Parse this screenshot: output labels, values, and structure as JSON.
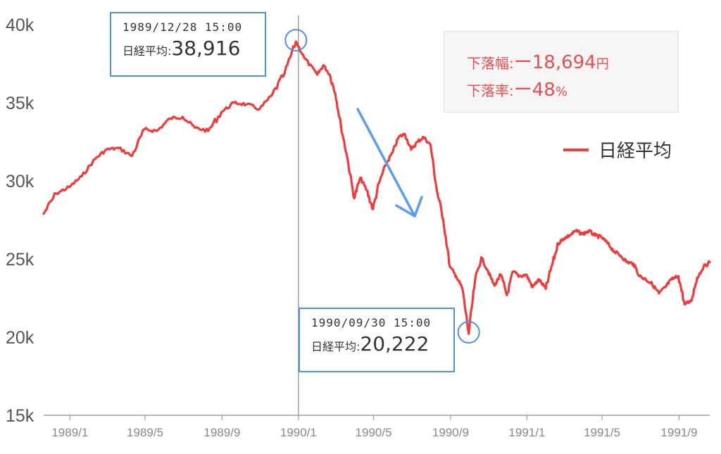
{
  "chart_data": {
    "type": "line",
    "yticks": [
      "15k",
      "20k",
      "25k",
      "30k",
      "35k",
      "40k"
    ],
    "xticks": [
      {
        "label": "1989/1",
        "x": "1989-01-01"
      },
      {
        "label": "1989/5",
        "x": "1989-05-01"
      },
      {
        "label": "1989/9",
        "x": "1989-09-01"
      },
      {
        "label": "1990/1",
        "x": "1990-01-01"
      },
      {
        "label": "1990/5",
        "x": "1990-05-01"
      },
      {
        "label": "1990/9",
        "x": "1990-09-01"
      },
      {
        "label": "1991/1",
        "x": "1991-01-01"
      },
      {
        "label": "1991/5",
        "x": "1991-05-01"
      },
      {
        "label": "1991/9",
        "x": "1991-09-01"
      }
    ],
    "ylim": [
      15000,
      40000
    ],
    "xlim": [
      "1988-11-20",
      "1991-10-20"
    ],
    "grid": false,
    "legend": {
      "position": "right",
      "label": "日経平均"
    },
    "series": [
      {
        "name": "日経平均",
        "color": "#ef3b3b",
        "x": [
          "1988-11-20",
          "1988-12-10",
          "1988-12-31",
          "1989-01-20",
          "1989-02-10",
          "1989-02-28",
          "1989-03-20",
          "1989-04-10",
          "1989-04-30",
          "1989-05-20",
          "1989-06-10",
          "1989-06-30",
          "1989-07-20",
          "1989-08-10",
          "1989-08-31",
          "1989-09-20",
          "1989-10-10",
          "1989-10-31",
          "1989-11-20",
          "1989-12-10",
          "1989-12-28",
          "1990-01-10",
          "1990-01-31",
          "1990-02-10",
          "1990-02-20",
          "1990-03-01",
          "1990-03-10",
          "1990-03-20",
          "1990-03-31",
          "1990-04-10",
          "1990-04-20",
          "1990-04-30",
          "1990-05-10",
          "1990-05-20",
          "1990-05-31",
          "1990-06-10",
          "1990-06-20",
          "1990-06-30",
          "1990-07-10",
          "1990-07-20",
          "1990-07-31",
          "1990-08-10",
          "1990-08-20",
          "1990-08-31",
          "1990-09-10",
          "1990-09-20",
          "1990-09-30",
          "1990-10-10",
          "1990-10-20",
          "1990-10-31",
          "1990-11-10",
          "1990-11-20",
          "1990-11-30",
          "1990-12-10",
          "1990-12-20",
          "1990-12-31",
          "1991-01-10",
          "1991-01-20",
          "1991-01-31",
          "1991-02-10",
          "1991-02-20",
          "1991-02-28",
          "1991-03-10",
          "1991-03-20",
          "1991-03-31",
          "1991-04-10",
          "1991-04-20",
          "1991-04-30",
          "1991-05-10",
          "1991-05-20",
          "1991-05-31",
          "1991-06-10",
          "1991-06-20",
          "1991-06-30",
          "1991-07-10",
          "1991-07-20",
          "1991-07-31",
          "1991-08-10",
          "1991-08-20",
          "1991-08-31",
          "1991-09-10",
          "1991-09-20",
          "1991-09-30",
          "1991-10-10",
          "1991-10-20"
        ],
        "y": [
          27900,
          29200,
          29600,
          30300,
          31400,
          32000,
          32100,
          31600,
          33300,
          33200,
          34000,
          34100,
          33400,
          33200,
          34400,
          35000,
          34900,
          34600,
          35500,
          36900,
          38916,
          37900,
          36800,
          37400,
          36800,
          35600,
          33500,
          31500,
          28900,
          30200,
          29400,
          28200,
          29900,
          31000,
          31800,
          32800,
          33000,
          32000,
          32500,
          32800,
          32300,
          29400,
          27600,
          24500,
          23900,
          23100,
          20222,
          23600,
          25100,
          24200,
          23300,
          24000,
          22700,
          24200,
          23900,
          24000,
          23200,
          23700,
          23100,
          24600,
          26000,
          26300,
          26500,
          26800,
          26600,
          26800,
          26500,
          26400,
          26000,
          25500,
          25200,
          24800,
          24700,
          23900,
          23700,
          23400,
          22800,
          23200,
          23700,
          23900,
          22100,
          22300,
          23800,
          24500,
          24800
        ]
      }
    ],
    "annotations": [
      {
        "timestamp": "1989/12/28 15:00",
        "label": "日経平均",
        "sep": ":",
        "value": "38,916",
        "x": "1989-12-28",
        "y": 38916
      },
      {
        "timestamp": "1990/09/30 15:00",
        "label": "日経平均",
        "sep": ":",
        "value": "20,222",
        "x": "1990-09-30",
        "y": 20222
      }
    ],
    "stats": {
      "drop_label": "下落幅",
      "drop_value": "ー18,694",
      "drop_unit": "円",
      "rate_label": "下落率",
      "rate_value": "ー48",
      "rate_unit": "%",
      "sep": ":"
    },
    "colors": {
      "line": "#ef3b3b",
      "annotation": "#4f8fe6",
      "stats": "#e84e4e",
      "axis": "#9e9e9e"
    }
  }
}
